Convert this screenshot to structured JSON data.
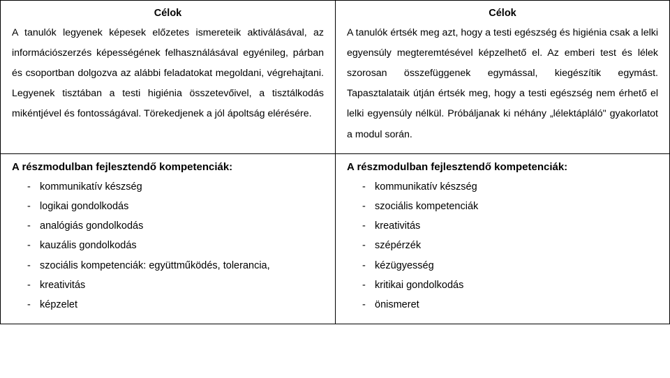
{
  "colors": {
    "text": "#000000",
    "border": "#000000",
    "background": "#ffffff"
  },
  "top": {
    "left": {
      "title": "Célok",
      "paragraph": "A tanulók legyenek képesek előzetes ismereteik aktiválásával, az információszerzés képességének felhasználásával egyénileg, párban és csoportban dolgozva az alábbi feladatokat megoldani, végrehajtani. Legyenek tisztában a testi higiénia összetevőivel, a tisztálkodás mikéntjével és fontosságával. Törekedjenek a jól ápoltság elérésére."
    },
    "right": {
      "title": "Célok",
      "paragraph": "A tanulók értsék meg azt, hogy a testi egészség és higiénia csak a lelki egyensúly megteremtésével képzelhető el. Az emberi test és lélek szorosan összefüggenek egymással, kiegészítik egymást. Tapasztalataik útján értsék meg, hogy a testi egészség nem érhető el lelki egyensúly nélkül. Próbáljanak ki néhány „lélektápláló\" gyakorlatot a modul során."
    }
  },
  "bottom": {
    "left": {
      "heading": "A részmodulban fejlesztendő kompetenciák:",
      "items": [
        "kommunikatív készség",
        "logikai gondolkodás",
        "analógiás gondolkodás",
        "kauzális gondolkodás",
        "szociális kompetenciák: együttműködés, tolerancia,",
        "kreativitás",
        "képzelet"
      ]
    },
    "right": {
      "heading": "A részmodulban fejlesztendő kompetenciák:",
      "items": [
        "kommunikatív készség",
        "szociális kompetenciák",
        "kreativitás",
        "szépérzék",
        "kézügyesség",
        "kritikai gondolkodás",
        "önismeret"
      ]
    }
  }
}
